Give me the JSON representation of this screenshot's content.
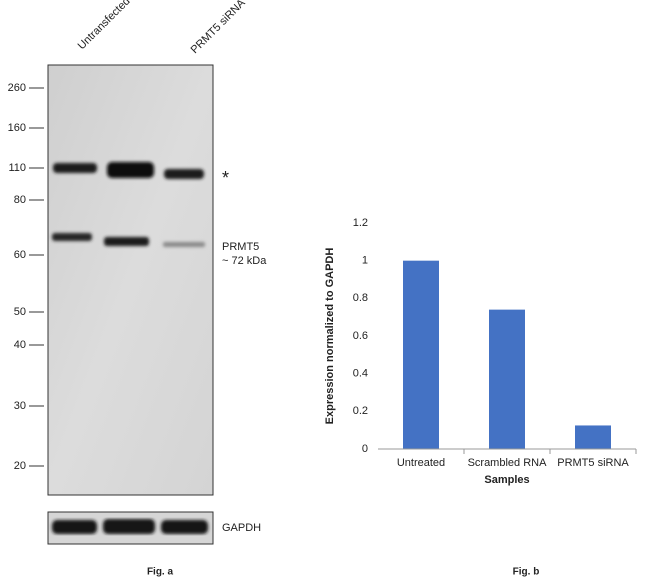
{
  "blot": {
    "lanes": [
      "Untransfected",
      "PRMT5 siRNA"
    ],
    "markers": [
      260,
      160,
      110,
      80,
      60,
      50,
      40,
      30,
      20
    ],
    "asterisk": "*",
    "band_label": "PRMT5",
    "band_size": "~ 72 kDa",
    "loading_control": "GAPDH",
    "caption": "Fig. a"
  },
  "chart_data": {
    "type": "bar",
    "caption": "Fig. b",
    "x_label": "Samples",
    "y_label": "Expression normalized to GAPDH",
    "categories": [
      "Untreated",
      "Scrambled RNA",
      "PRMT5 siRNA"
    ],
    "values": [
      1.0,
      0.74,
      0.125
    ],
    "color": "#4472c4",
    "ylim": [
      0,
      1.2
    ],
    "yticks": [
      0,
      0.2,
      0.4,
      0.6,
      0.8,
      1,
      1.2
    ],
    "grid": false
  }
}
